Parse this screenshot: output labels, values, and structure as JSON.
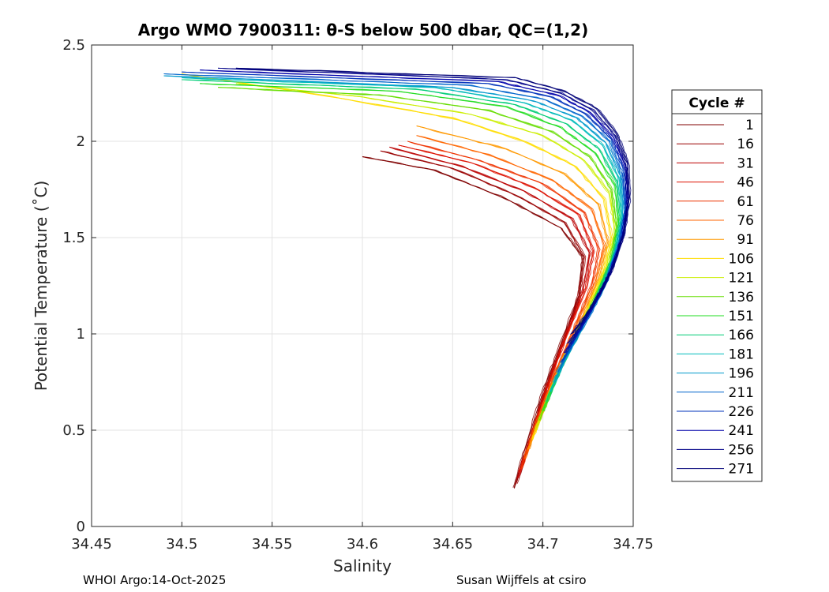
{
  "chart_data": {
    "type": "line",
    "title": "Argo WMO 7900311: θ-S below 500 dbar,  QC=(1,2)",
    "xlabel": "Salinity",
    "ylabel": "Potential Temperature (˚C)",
    "xlim": [
      34.45,
      34.75
    ],
    "ylim": [
      0,
      2.5
    ],
    "xticks": [
      34.45,
      34.5,
      34.55,
      34.6,
      34.65,
      34.7,
      34.75
    ],
    "xtick_labels": [
      "34.45",
      "34.5",
      "34.55",
      "34.6",
      "34.65",
      "34.7",
      "34.75"
    ],
    "yticks": [
      0,
      0.5,
      1,
      1.5,
      2,
      2.5
    ],
    "ytick_labels": [
      "0",
      "0.5",
      "1",
      "1.5",
      "2",
      "2.5"
    ],
    "grid": true,
    "legend_title": "Cycle #",
    "legend_position": "outside-right",
    "series": [
      {
        "name": "1",
        "color": "#800000",
        "points": [
          [
            34.684,
            0.2
          ],
          [
            34.69,
            0.4
          ],
          [
            34.7,
            0.7
          ],
          [
            34.71,
            0.95
          ],
          [
            34.72,
            1.2
          ],
          [
            34.722,
            1.4
          ],
          [
            34.71,
            1.55
          ],
          [
            34.68,
            1.7
          ],
          [
            34.64,
            1.85
          ],
          [
            34.6,
            1.92
          ]
        ]
      },
      {
        "name": "16",
        "color": "#990000",
        "points": [
          [
            34.685,
            0.22
          ],
          [
            34.692,
            0.42
          ],
          [
            34.701,
            0.7
          ],
          [
            34.711,
            0.95
          ],
          [
            34.72,
            1.2
          ],
          [
            34.723,
            1.4
          ],
          [
            34.712,
            1.58
          ],
          [
            34.685,
            1.72
          ],
          [
            34.65,
            1.86
          ],
          [
            34.61,
            1.95
          ]
        ]
      },
      {
        "name": "31",
        "color": "#bb0000",
        "points": [
          [
            34.686,
            0.25
          ],
          [
            34.693,
            0.45
          ],
          [
            34.702,
            0.72
          ],
          [
            34.712,
            0.97
          ],
          [
            34.722,
            1.22
          ],
          [
            34.726,
            1.42
          ],
          [
            34.716,
            1.6
          ],
          [
            34.69,
            1.74
          ],
          [
            34.655,
            1.87
          ],
          [
            34.615,
            1.97
          ]
        ]
      },
      {
        "name": "46",
        "color": "#dd1100",
        "points": [
          [
            34.687,
            0.28
          ],
          [
            34.694,
            0.48
          ],
          [
            34.703,
            0.74
          ],
          [
            34.713,
            0.99
          ],
          [
            34.724,
            1.24
          ],
          [
            34.728,
            1.43
          ],
          [
            34.72,
            1.62
          ],
          [
            34.695,
            1.76
          ],
          [
            34.66,
            1.89
          ],
          [
            34.62,
            1.98
          ]
        ]
      },
      {
        "name": "61",
        "color": "#ee3300",
        "points": [
          [
            34.688,
            0.3
          ],
          [
            34.695,
            0.5
          ],
          [
            34.705,
            0.76
          ],
          [
            34.716,
            1.0
          ],
          [
            34.727,
            1.25
          ],
          [
            34.731,
            1.44
          ],
          [
            34.723,
            1.63
          ],
          [
            34.7,
            1.78
          ],
          [
            34.665,
            1.9
          ],
          [
            34.625,
            2.0
          ]
        ]
      },
      {
        "name": "76",
        "color": "#ff6600",
        "points": [
          [
            34.69,
            0.35
          ],
          [
            34.697,
            0.55
          ],
          [
            34.707,
            0.8
          ],
          [
            34.718,
            1.03
          ],
          [
            34.729,
            1.27
          ],
          [
            34.734,
            1.46
          ],
          [
            34.727,
            1.65
          ],
          [
            34.705,
            1.8
          ],
          [
            34.67,
            1.93
          ],
          [
            34.63,
            2.03
          ]
        ]
      },
      {
        "name": "91",
        "color": "#ff9900",
        "points": [
          [
            34.692,
            0.4
          ],
          [
            34.7,
            0.6
          ],
          [
            34.71,
            0.84
          ],
          [
            34.721,
            1.06
          ],
          [
            34.731,
            1.29
          ],
          [
            34.736,
            1.48
          ],
          [
            34.731,
            1.67
          ],
          [
            34.712,
            1.83
          ],
          [
            34.68,
            1.96
          ],
          [
            34.63,
            2.08
          ]
        ]
      },
      {
        "name": "106",
        "color": "#ffdd00",
        "points": [
          [
            34.694,
            0.45
          ],
          [
            34.702,
            0.65
          ],
          [
            34.712,
            0.88
          ],
          [
            34.723,
            1.09
          ],
          [
            34.733,
            1.31
          ],
          [
            34.738,
            1.5
          ],
          [
            34.734,
            1.7
          ],
          [
            34.718,
            1.87
          ],
          [
            34.69,
            2.0
          ],
          [
            34.65,
            2.12
          ],
          [
            34.59,
            2.22
          ],
          [
            34.5,
            2.35
          ]
        ]
      },
      {
        "name": "121",
        "color": "#ccee00",
        "points": [
          [
            34.696,
            0.5
          ],
          [
            34.704,
            0.7
          ],
          [
            34.714,
            0.92
          ],
          [
            34.725,
            1.12
          ],
          [
            34.735,
            1.34
          ],
          [
            34.74,
            1.53
          ],
          [
            34.737,
            1.73
          ],
          [
            34.723,
            1.9
          ],
          [
            34.7,
            2.03
          ],
          [
            34.66,
            2.14
          ],
          [
            34.6,
            2.23
          ],
          [
            34.53,
            2.3
          ]
        ]
      },
      {
        "name": "136",
        "color": "#66dd00",
        "points": [
          [
            34.698,
            0.55
          ],
          [
            34.706,
            0.74
          ],
          [
            34.716,
            0.95
          ],
          [
            34.727,
            1.15
          ],
          [
            34.737,
            1.36
          ],
          [
            34.741,
            1.55
          ],
          [
            34.738,
            1.75
          ],
          [
            34.726,
            1.92
          ],
          [
            34.705,
            2.05
          ],
          [
            34.67,
            2.16
          ],
          [
            34.61,
            2.24
          ],
          [
            34.52,
            2.28
          ]
        ]
      },
      {
        "name": "151",
        "color": "#22dd22",
        "points": [
          [
            34.7,
            0.6
          ],
          [
            34.708,
            0.78
          ],
          [
            34.718,
            0.98
          ],
          [
            34.729,
            1.18
          ],
          [
            34.738,
            1.38
          ],
          [
            34.742,
            1.57
          ],
          [
            34.74,
            1.77
          ],
          [
            34.729,
            1.94
          ],
          [
            34.71,
            2.07
          ],
          [
            34.68,
            2.18
          ],
          [
            34.62,
            2.26
          ],
          [
            34.51,
            2.3
          ]
        ]
      },
      {
        "name": "166",
        "color": "#00cc77",
        "points": [
          [
            34.702,
            0.65
          ],
          [
            34.71,
            0.82
          ],
          [
            34.72,
            1.01
          ],
          [
            34.73,
            1.2
          ],
          [
            34.739,
            1.4
          ],
          [
            34.743,
            1.59
          ],
          [
            34.741,
            1.79
          ],
          [
            34.731,
            1.96
          ],
          [
            34.713,
            2.09
          ],
          [
            34.685,
            2.19
          ],
          [
            34.63,
            2.27
          ],
          [
            34.5,
            2.32
          ]
        ]
      },
      {
        "name": "181",
        "color": "#00bbbb",
        "points": [
          [
            34.704,
            0.7
          ],
          [
            34.712,
            0.86
          ],
          [
            34.722,
            1.04
          ],
          [
            34.732,
            1.22
          ],
          [
            34.74,
            1.42
          ],
          [
            34.744,
            1.61
          ],
          [
            34.742,
            1.81
          ],
          [
            34.733,
            1.98
          ],
          [
            34.716,
            2.11
          ],
          [
            34.69,
            2.2
          ],
          [
            34.64,
            2.28
          ],
          [
            34.5,
            2.33
          ]
        ]
      },
      {
        "name": "196",
        "color": "#0099cc",
        "points": [
          [
            34.706,
            0.75
          ],
          [
            34.714,
            0.9
          ],
          [
            34.724,
            1.07
          ],
          [
            34.734,
            1.24
          ],
          [
            34.741,
            1.44
          ],
          [
            34.745,
            1.63
          ],
          [
            34.743,
            1.82
          ],
          [
            34.735,
            1.99
          ],
          [
            34.719,
            2.12
          ],
          [
            34.695,
            2.21
          ],
          [
            34.65,
            2.28
          ],
          [
            34.49,
            2.34
          ]
        ]
      },
      {
        "name": "211",
        "color": "#0066cc",
        "points": [
          [
            34.708,
            0.8
          ],
          [
            34.716,
            0.94
          ],
          [
            34.726,
            1.1
          ],
          [
            34.735,
            1.27
          ],
          [
            34.742,
            1.46
          ],
          [
            34.746,
            1.64
          ],
          [
            34.744,
            1.83
          ],
          [
            34.737,
            2.0
          ],
          [
            34.722,
            2.13
          ],
          [
            34.7,
            2.22
          ],
          [
            34.66,
            2.29
          ],
          [
            34.49,
            2.35
          ]
        ]
      },
      {
        "name": "226",
        "color": "#0033bb",
        "points": [
          [
            34.71,
            0.85
          ],
          [
            34.718,
            0.98
          ],
          [
            34.727,
            1.13
          ],
          [
            34.736,
            1.29
          ],
          [
            34.743,
            1.48
          ],
          [
            34.746,
            1.66
          ],
          [
            34.745,
            1.85
          ],
          [
            34.738,
            2.01
          ],
          [
            34.724,
            2.14
          ],
          [
            34.705,
            2.23
          ],
          [
            34.67,
            2.3
          ],
          [
            34.5,
            2.36
          ]
        ]
      },
      {
        "name": "241",
        "color": "#0000aa",
        "points": [
          [
            34.712,
            0.9
          ],
          [
            34.72,
            1.02
          ],
          [
            34.729,
            1.16
          ],
          [
            34.737,
            1.31
          ],
          [
            34.744,
            1.5
          ],
          [
            34.747,
            1.68
          ],
          [
            34.746,
            1.86
          ],
          [
            34.739,
            2.02
          ],
          [
            34.726,
            2.15
          ],
          [
            34.708,
            2.24
          ],
          [
            34.675,
            2.31
          ],
          [
            34.51,
            2.37
          ]
        ]
      },
      {
        "name": "256",
        "color": "#000088",
        "points": [
          [
            34.714,
            0.95
          ],
          [
            34.722,
            1.06
          ],
          [
            34.73,
            1.19
          ],
          [
            34.738,
            1.33
          ],
          [
            34.745,
            1.52
          ],
          [
            34.747,
            1.7
          ],
          [
            34.746,
            1.88
          ],
          [
            34.74,
            2.03
          ],
          [
            34.728,
            2.16
          ],
          [
            34.71,
            2.25
          ],
          [
            34.68,
            2.32
          ],
          [
            34.52,
            2.38
          ]
        ]
      },
      {
        "name": "271",
        "color": "#000077",
        "points": [
          [
            34.716,
            1.0
          ],
          [
            34.724,
            1.1
          ],
          [
            34.732,
            1.22
          ],
          [
            34.739,
            1.35
          ],
          [
            34.745,
            1.53
          ],
          [
            34.748,
            1.71
          ],
          [
            34.747,
            1.89
          ],
          [
            34.741,
            2.04
          ],
          [
            34.73,
            2.17
          ],
          [
            34.712,
            2.26
          ],
          [
            34.685,
            2.33
          ],
          [
            34.53,
            2.38
          ]
        ]
      }
    ]
  },
  "footer": {
    "left": "WHOI Argo:14-Oct-2025",
    "right": "Susan Wijffels at csiro"
  }
}
